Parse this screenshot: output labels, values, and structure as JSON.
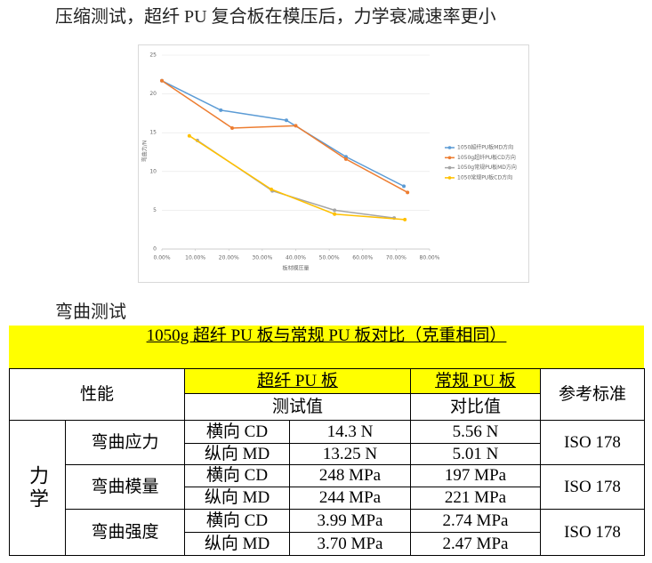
{
  "heading": "压缩测试，超纤 PU 复合板在模压后，力学衰减速率更小",
  "chart": {
    "type": "line",
    "x_label": "板材模压量",
    "y_label": "弯曲力/N",
    "xlim": [
      0,
      80
    ],
    "xticks": [
      {
        "value": 0,
        "label": "0.00%"
      },
      {
        "value": 10,
        "label": "10.00%"
      },
      {
        "value": 20,
        "label": "20.00%"
      },
      {
        "value": 30,
        "label": "30.00%"
      },
      {
        "value": 40,
        "label": "40.00%"
      },
      {
        "value": 50,
        "label": "50.00%"
      },
      {
        "value": 60,
        "label": "60.00%"
      },
      {
        "value": 70,
        "label": "70.00%"
      },
      {
        "value": 80,
        "label": "80.00%"
      }
    ],
    "ylim": [
      0,
      25
    ],
    "yticks": [
      0,
      5,
      10,
      15,
      20,
      25
    ],
    "grid": true,
    "legend": "right",
    "series": [
      {
        "name": "1050超纤PU板MD方向",
        "color": "#5b9bd5",
        "x": [
          0,
          17.6,
          37.2,
          55,
          72.3
        ],
        "values": [
          21.7,
          17.9,
          16.6,
          11.9,
          8.1
        ]
      },
      {
        "name": "1050g超纤PU板CD方向",
        "color": "#ed7d31",
        "x": [
          0,
          21,
          40,
          55,
          73.4
        ],
        "values": [
          21.7,
          15.6,
          15.9,
          11.6,
          7.3
        ]
      },
      {
        "name": "1050g常规PU板MD方向",
        "color": "#a5a5a5",
        "x": [
          10.6,
          33,
          51.6,
          69.4
        ],
        "values": [
          14.0,
          7.5,
          5.0,
          4.0
        ]
      },
      {
        "name": "1050常规PU板CD方向",
        "color": "#ffc000",
        "x": [
          8.2,
          32.7,
          51.6,
          72.6
        ],
        "values": [
          14.6,
          7.7,
          4.5,
          3.8
        ]
      }
    ]
  },
  "section": "弯曲测试",
  "table": {
    "title": "1050g 超纤 PU 板与常规 PU 板对比（克重相同）",
    "header": {
      "performance": "性能",
      "group_a": "超纤 PU 板",
      "group_b": "常规 PU 板",
      "standard": "参考标准",
      "sub_a": "测试值",
      "sub_b": "对比值"
    },
    "category": "力学",
    "groups": [
      {
        "name": "弯曲应力",
        "standard": "ISO 178",
        "rows": [
          [
            "横向 CD",
            "14.3 N",
            "5.56 N"
          ],
          [
            "纵向 MD",
            "13.25 N",
            "5.01 N"
          ]
        ]
      },
      {
        "name": "弯曲模量",
        "standard": "ISO 178",
        "rows": [
          [
            "横向 CD",
            "248 MPa",
            "197 MPa"
          ],
          [
            "纵向 MD",
            "244 MPa",
            "221 MPa"
          ]
        ]
      },
      {
        "name": "弯曲强度",
        "standard": "ISO 178",
        "rows": [
          [
            "横向 CD",
            "3.99 MPa",
            "2.74 MPa"
          ],
          [
            "纵向 MD",
            "3.70 MPa",
            "2.47 MPa"
          ]
        ]
      }
    ]
  }
}
